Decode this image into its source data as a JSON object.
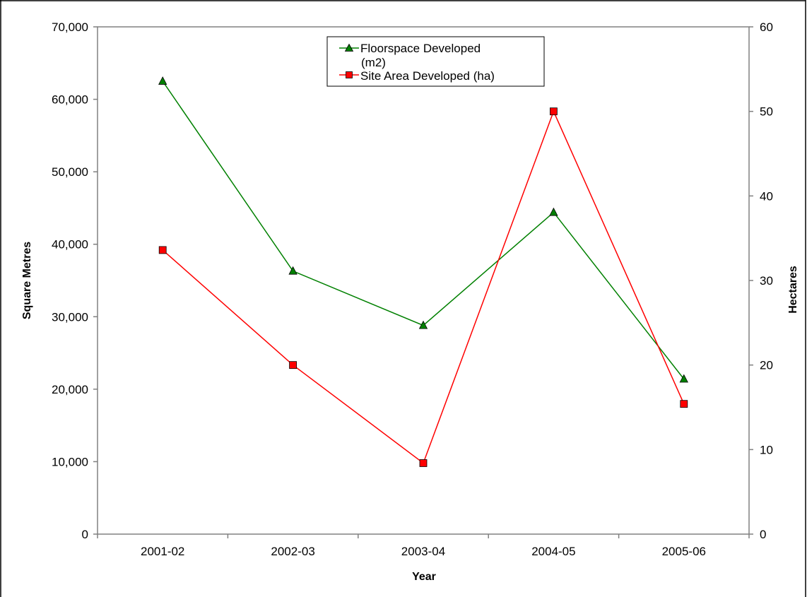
{
  "chart_data": {
    "type": "line",
    "categories": [
      "2001-02",
      "2002-03",
      "2003-04",
      "2004-05",
      "2005-06"
    ],
    "xlabel": "Year",
    "ylabel_left": "Square Metres",
    "ylabel_right": "Hectares",
    "ylim_left": [
      0,
      70000
    ],
    "ylim_right": [
      0,
      60
    ],
    "yticks_left": [
      "0",
      "10,000",
      "20,000",
      "30,000",
      "40,000",
      "50,000",
      "60,000",
      "70,000"
    ],
    "yticks_right": [
      "0",
      "10",
      "20",
      "30",
      "40",
      "50",
      "60"
    ],
    "grid": false,
    "legend_position": "top-center",
    "series": [
      {
        "name": "Floorspace Developed (m2)",
        "axis": "left",
        "color": "#008000",
        "marker": "triangle",
        "values": [
          62500,
          36300,
          28800,
          44400,
          21400
        ]
      },
      {
        "name": "Site Area Developed (ha)",
        "axis": "right",
        "color": "#ff0000",
        "marker": "square",
        "values": [
          33.6,
          20.0,
          8.4,
          50.0,
          15.4
        ]
      }
    ]
  },
  "legend": {
    "items": [
      {
        "line1": "Floorspace Developed",
        "line2": "(m2)"
      },
      {
        "line1": "Site Area Developed (ha)",
        "line2": ""
      }
    ]
  }
}
